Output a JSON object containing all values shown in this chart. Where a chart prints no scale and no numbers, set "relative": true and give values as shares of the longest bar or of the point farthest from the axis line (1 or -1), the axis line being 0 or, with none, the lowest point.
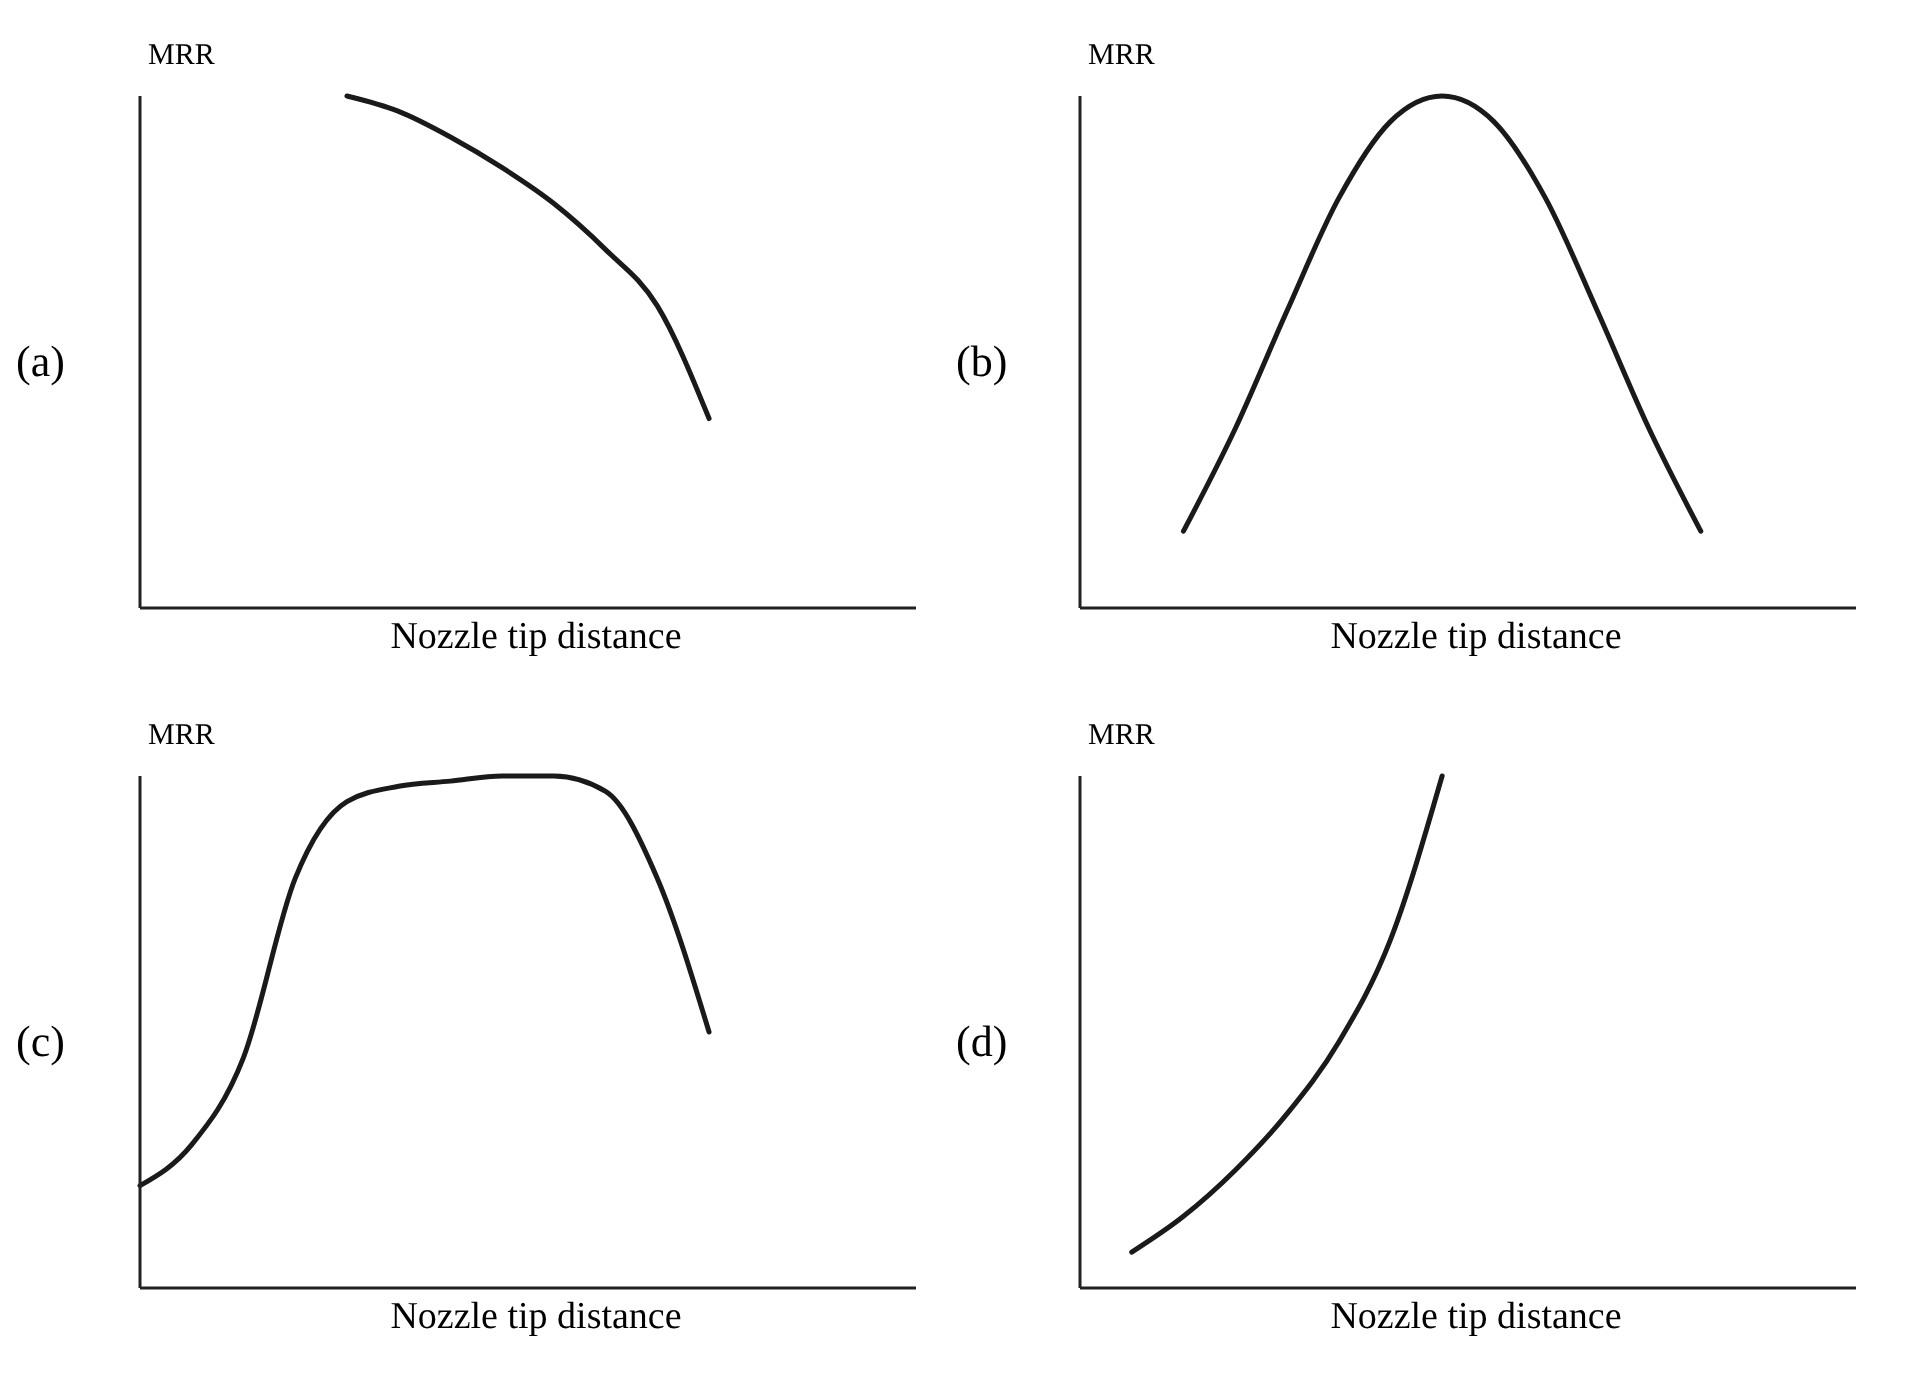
{
  "chart_data": [
    {
      "type": "line",
      "relative": true,
      "ylabel": "MRR",
      "xlabel": "Nozzle tip distance",
      "annotations": [
        "(a)"
      ],
      "categories": [
        null,
        null,
        null,
        null,
        null,
        null,
        null,
        null,
        null,
        null,
        null,
        null,
        null,
        null,
        null,
        null
      ],
      "series": [
        {
          "color": "#1a1a1a",
          "values": [
            null,
            null,
            null,
            null,
            1,
            0.97,
            0.92,
            0.86,
            0.79,
            0.7,
            0.59,
            0.37,
            null,
            null,
            null,
            null
          ]
        }
      ]
    },
    {
      "type": "line",
      "relative": true,
      "ylabel": "MRR",
      "xlabel": "Nozzle tip distance",
      "annotations": [
        "(b)"
      ],
      "categories": [
        null,
        null,
        null,
        null,
        null,
        null,
        null,
        null,
        null,
        null,
        null,
        null,
        null,
        null,
        null,
        null
      ],
      "series": [
        {
          "color": "#1a1a1a",
          "values": [
            null,
            null,
            0.15,
            0.35,
            0.58,
            0.8,
            0.95,
            1,
            0.95,
            0.8,
            0.58,
            0.35,
            0.15,
            null,
            null,
            null
          ]
        }
      ]
    },
    {
      "type": "line",
      "relative": true,
      "ylabel": "MRR",
      "xlabel": "Nozzle tip distance",
      "annotations": [
        "(c)"
      ],
      "categories": [
        null,
        null,
        null,
        null,
        null,
        null,
        null,
        null,
        null,
        null,
        null,
        null,
        null,
        null,
        null,
        null
      ],
      "series": [
        {
          "color": "#1a1a1a",
          "values": [
            0.2,
            0.28,
            0.45,
            0.8,
            0.95,
            0.98,
            0.99,
            1,
            1,
            0.97,
            0.8,
            0.5,
            null,
            null,
            null,
            null
          ]
        }
      ]
    },
    {
      "type": "line",
      "relative": true,
      "ylabel": "MRR",
      "xlabel": "Nozzle tip distance",
      "annotations": [
        "(d)"
      ],
      "categories": [
        null,
        null,
        null,
        null,
        null,
        null,
        null,
        null,
        null,
        null,
        null,
        null,
        null,
        null,
        null,
        null
      ],
      "series": [
        {
          "color": "#1a1a1a",
          "values": [
            null,
            0.07,
            0.14,
            0.23,
            0.34,
            0.48,
            0.68,
            1,
            null,
            null,
            null,
            null,
            null,
            null,
            null,
            null
          ]
        }
      ]
    }
  ]
}
